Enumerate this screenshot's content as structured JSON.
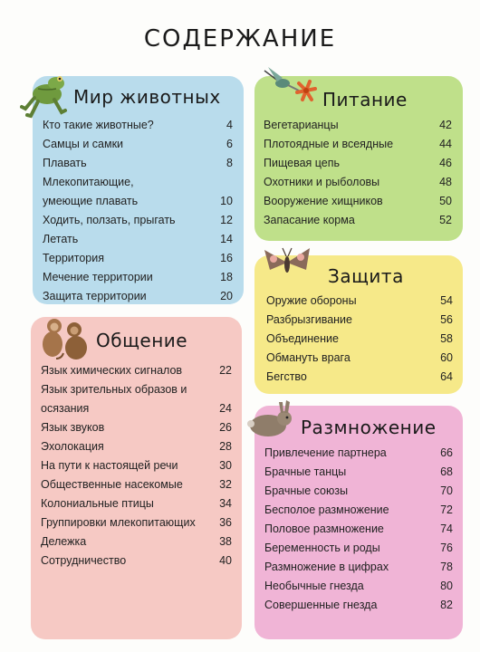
{
  "page": {
    "title": "СОДЕРЖАНИЕ"
  },
  "colors": {
    "animals": "#b9dcec",
    "food": "#bfe08a",
    "defense": "#f6e989",
    "communication": "#f6c9c4",
    "reproduction": "#f0b4d6"
  },
  "sections": {
    "animals": {
      "title": "Мир животных",
      "icon": "frog-icon",
      "items": [
        {
          "title": "Кто такие животные?",
          "page": "4"
        },
        {
          "title": "Самцы и самки",
          "page": "6"
        },
        {
          "title": "Плавать",
          "page": "8"
        },
        {
          "title": "Млекопитающие, умеющие плавать",
          "page": "10"
        },
        {
          "title": "Ходить, ползать, прыгать",
          "page": "12"
        },
        {
          "title": "Летать",
          "page": "14"
        },
        {
          "title": "Территория",
          "page": "16"
        },
        {
          "title": "Мечение территории",
          "page": "18"
        },
        {
          "title": "Защита территории",
          "page": "20"
        }
      ]
    },
    "food": {
      "title": "Питание",
      "icon": "hummingbird-icon",
      "items": [
        {
          "title": "Вегетарианцы",
          "page": "42"
        },
        {
          "title": "Плотоядные и всеядные",
          "page": "44"
        },
        {
          "title": "Пищевая цепь",
          "page": "46"
        },
        {
          "title": "Охотники и рыболовы",
          "page": "48"
        },
        {
          "title": "Вооружение хищников",
          "page": "50"
        },
        {
          "title": "Запасание корма",
          "page": "52"
        }
      ]
    },
    "defense": {
      "title": "Защита",
      "icon": "moth-icon",
      "items": [
        {
          "title": "Оружие обороны",
          "page": "54"
        },
        {
          "title": "Разбрызгивание",
          "page": "56"
        },
        {
          "title": "Объединение",
          "page": "58"
        },
        {
          "title": "Обмануть врага",
          "page": "60"
        },
        {
          "title": "Бегство",
          "page": "64"
        }
      ]
    },
    "communication": {
      "title": "Общение",
      "icon": "monkeys-icon",
      "items": [
        {
          "title": "Язык химических сигналов",
          "page": "22"
        },
        {
          "title": "Язык зрительных образов и осязания",
          "page": "24"
        },
        {
          "title": "Язык звуков",
          "page": "26"
        },
        {
          "title": "Эхолокация",
          "page": "28"
        },
        {
          "title": "На пути к настоящей речи",
          "page": "30"
        },
        {
          "title": "Общественные насекомые",
          "page": "32"
        },
        {
          "title": "Колониальные птицы",
          "page": "34"
        },
        {
          "title": "Группировки млекопитающих",
          "page": "36"
        },
        {
          "title": "Дележка",
          "page": "38"
        },
        {
          "title": "Сотрудничество",
          "page": "40"
        }
      ]
    },
    "reproduction": {
      "title": "Размножение",
      "icon": "rabbit-icon",
      "items": [
        {
          "title": "Привлечение партнера",
          "page": "66"
        },
        {
          "title": "Брачные танцы",
          "page": "68"
        },
        {
          "title": "Брачные союзы",
          "page": "70"
        },
        {
          "title": "Бесполое размножение",
          "page": "72"
        },
        {
          "title": "Половое размножение",
          "page": "74"
        },
        {
          "title": "Беременность и роды",
          "page": "76"
        },
        {
          "title": "Размножение в цифрах",
          "page": "78"
        },
        {
          "title": "Необычные гнезда",
          "page": "80"
        },
        {
          "title": "Совершенные гнезда",
          "page": "82"
        }
      ]
    }
  }
}
